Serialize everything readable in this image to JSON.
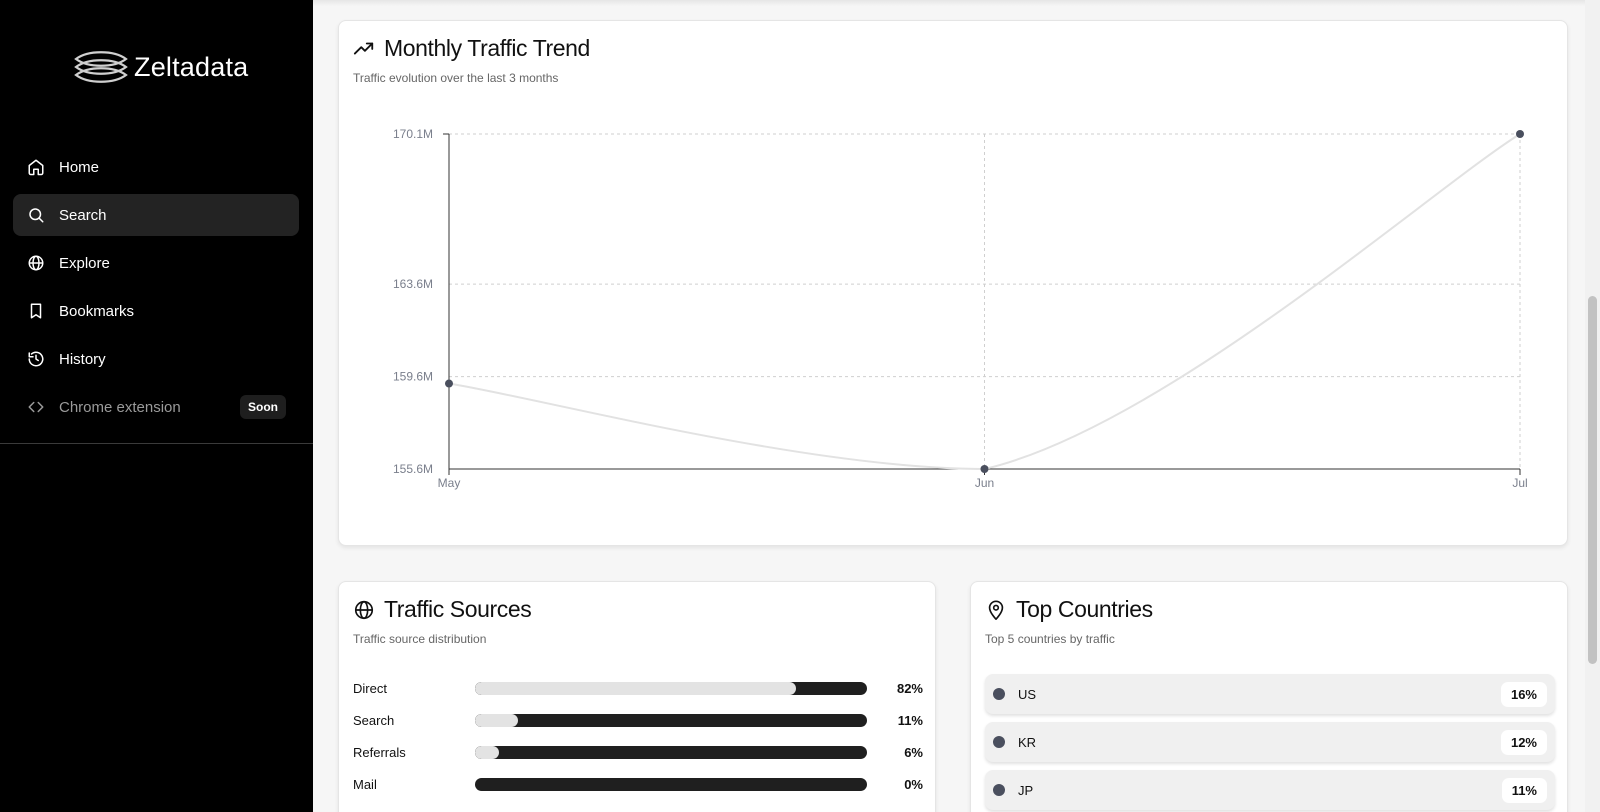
{
  "app": {
    "name": "Zeltadata"
  },
  "sidebar": {
    "items": [
      {
        "label": "Home",
        "icon": "home-icon",
        "active": false
      },
      {
        "label": "Search",
        "icon": "search-icon",
        "active": true
      },
      {
        "label": "Explore",
        "icon": "globe-icon",
        "active": false
      },
      {
        "label": "Bookmarks",
        "icon": "bookmark-icon",
        "active": false
      },
      {
        "label": "History",
        "icon": "history-icon",
        "active": false
      },
      {
        "label": "Chrome extension",
        "icon": "code-icon",
        "active": false,
        "badge": "Soon"
      }
    ]
  },
  "trend": {
    "title": "Monthly Traffic Trend",
    "subtitle": "Traffic evolution over the last 3 months",
    "icon": "trending-up-icon"
  },
  "chart_data": {
    "type": "line",
    "x": [
      "May",
      "Jun",
      "Jul"
    ],
    "values": [
      159.3,
      155.6,
      170.1
    ],
    "yticks": [
      "155.6M",
      "159.6M",
      "163.6M",
      "170.1M"
    ],
    "ytick_values": [
      155.6,
      159.6,
      163.6,
      170.1
    ],
    "ylim": [
      155.6,
      170.1
    ],
    "grid": true,
    "line_color": "#e2e2e2",
    "point_color": "#4a4f5e"
  },
  "sources": {
    "title": "Traffic Sources",
    "subtitle": "Traffic source distribution",
    "icon": "globe-icon",
    "items": [
      {
        "label": "Direct",
        "percent": "82%",
        "fraction": 0.82
      },
      {
        "label": "Search",
        "percent": "11%",
        "fraction": 0.11
      },
      {
        "label": "Referrals",
        "percent": "6%",
        "fraction": 0.06
      },
      {
        "label": "Mail",
        "percent": "0%",
        "fraction": 0.0
      }
    ]
  },
  "countries": {
    "title": "Top Countries",
    "subtitle": "Top 5 countries by traffic",
    "icon": "map-pin-icon",
    "items": [
      {
        "code": "US",
        "percent": "16%"
      },
      {
        "code": "KR",
        "percent": "12%"
      },
      {
        "code": "JP",
        "percent": "11%"
      }
    ]
  }
}
